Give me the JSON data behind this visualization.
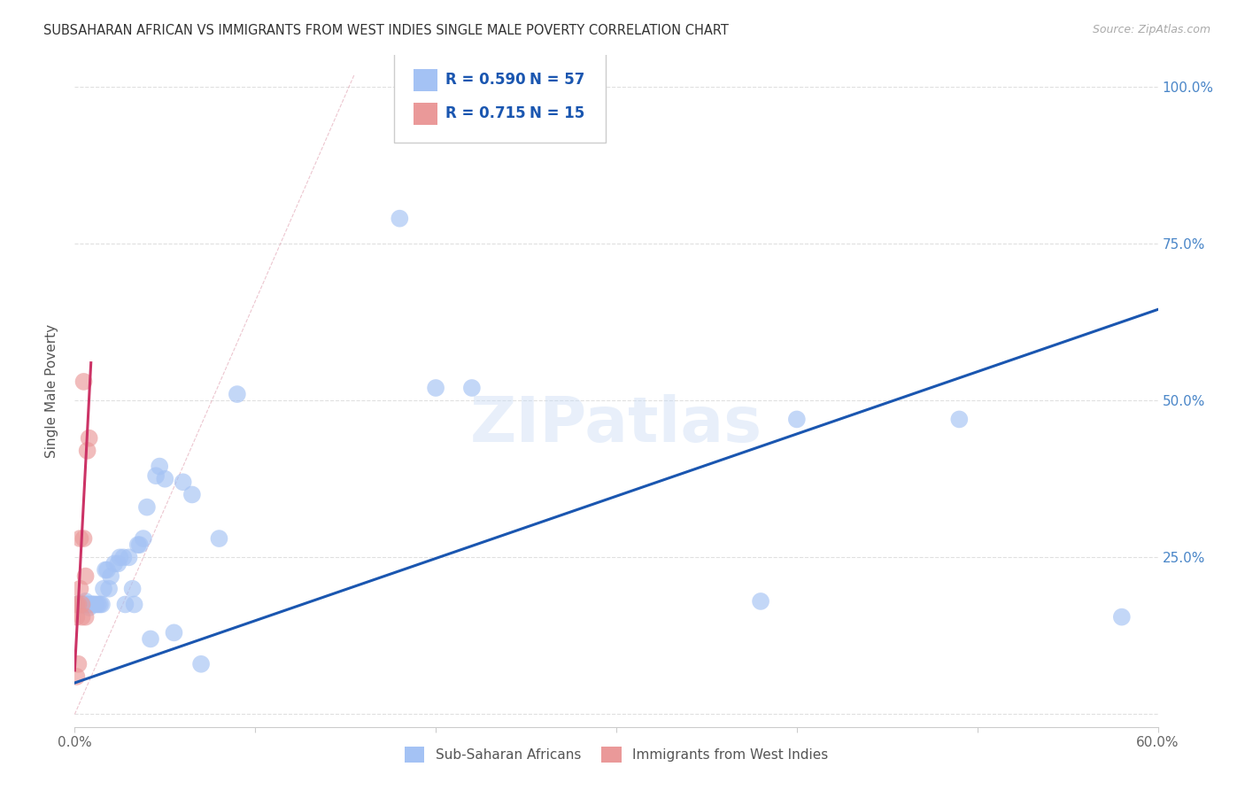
{
  "title": "SUBSAHARAN AFRICAN VS IMMIGRANTS FROM WEST INDIES SINGLE MALE POVERTY CORRELATION CHART",
  "source": "Source: ZipAtlas.com",
  "ylabel": "Single Male Poverty",
  "blue_r": "0.590",
  "blue_n": "57",
  "pink_r": "0.715",
  "pink_n": "15",
  "blue_label": "Sub-Saharan Africans",
  "pink_label": "Immigrants from West Indies",
  "watermark": "ZIPatlas",
  "blue_color": "#a4c2f4",
  "pink_color": "#ea9999",
  "blue_line_color": "#1a56b0",
  "pink_line_color": "#cc3366",
  "legend_r_color": "#1a56b0",
  "blue_scatter_x": [
    0.001,
    0.002,
    0.002,
    0.003,
    0.003,
    0.004,
    0.004,
    0.005,
    0.005,
    0.006,
    0.006,
    0.007,
    0.007,
    0.008,
    0.008,
    0.009,
    0.01,
    0.01,
    0.011,
    0.012,
    0.013,
    0.014,
    0.015,
    0.016,
    0.017,
    0.018,
    0.019,
    0.02,
    0.022,
    0.024,
    0.025,
    0.027,
    0.028,
    0.03,
    0.032,
    0.033,
    0.035,
    0.036,
    0.038,
    0.04,
    0.042,
    0.045,
    0.047,
    0.05,
    0.055,
    0.06,
    0.065,
    0.07,
    0.08,
    0.09,
    0.18,
    0.2,
    0.22,
    0.38,
    0.4,
    0.49,
    0.58
  ],
  "blue_scatter_y": [
    0.175,
    0.175,
    0.175,
    0.175,
    0.175,
    0.175,
    0.175,
    0.175,
    0.175,
    0.175,
    0.18,
    0.175,
    0.175,
    0.17,
    0.175,
    0.175,
    0.175,
    0.175,
    0.175,
    0.175,
    0.175,
    0.175,
    0.175,
    0.2,
    0.23,
    0.23,
    0.2,
    0.22,
    0.24,
    0.24,
    0.25,
    0.25,
    0.175,
    0.25,
    0.2,
    0.175,
    0.27,
    0.27,
    0.28,
    0.33,
    0.12,
    0.38,
    0.395,
    0.375,
    0.13,
    0.37,
    0.35,
    0.08,
    0.28,
    0.51,
    0.79,
    0.52,
    0.52,
    0.18,
    0.47,
    0.47,
    0.155
  ],
  "pink_scatter_x": [
    0.001,
    0.001,
    0.001,
    0.002,
    0.002,
    0.003,
    0.003,
    0.004,
    0.004,
    0.005,
    0.005,
    0.006,
    0.006,
    0.007,
    0.008
  ],
  "pink_scatter_y": [
    0.175,
    0.155,
    0.06,
    0.175,
    0.08,
    0.2,
    0.28,
    0.175,
    0.155,
    0.53,
    0.28,
    0.22,
    0.155,
    0.42,
    0.44
  ],
  "xlim": [
    0.0,
    0.6
  ],
  "ylim": [
    -0.02,
    1.05
  ],
  "xticks": [
    0.0,
    0.1,
    0.2,
    0.3,
    0.4,
    0.5,
    0.6
  ],
  "yticks": [
    0.0,
    0.25,
    0.5,
    0.75,
    1.0
  ],
  "yticklabels_right": [
    "",
    "25.0%",
    "50.0%",
    "75.0%",
    "100.0%"
  ],
  "blue_line_x0": 0.0,
  "blue_line_y0": 0.05,
  "blue_line_x1": 0.6,
  "blue_line_y1": 0.645,
  "pink_line_x0": 0.0,
  "pink_line_y0": 0.07,
  "pink_line_x1": 0.009,
  "pink_line_y1": 0.56,
  "dash_line_x0": 0.0,
  "dash_line_y0": 0.0,
  "dash_line_x1": 0.155,
  "dash_line_y1": 1.02,
  "background_color": "#ffffff",
  "grid_color": "#e0e0e0"
}
